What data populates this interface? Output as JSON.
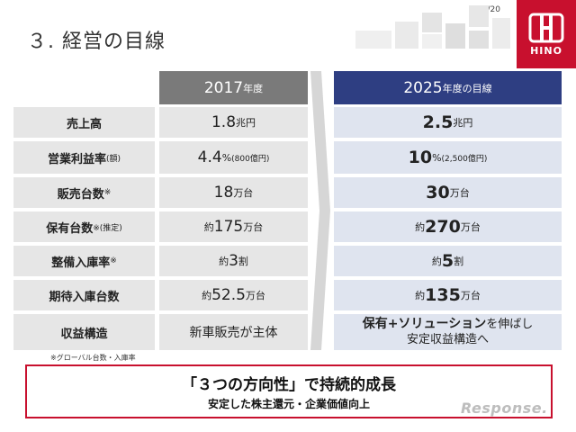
{
  "page_number": "18/20",
  "title": "３. 経営の目線",
  "logo": {
    "text": "HINO"
  },
  "header": {
    "col2017_main": "2017",
    "col2017_suffix": "年度",
    "col2025_main": "2025",
    "col2025_suffix": "年度の目線"
  },
  "rows": [
    {
      "label": "売上高",
      "label_note": "",
      "v2017_pre": "",
      "v2017_num": "1.8",
      "v2017_unit": "兆円",
      "v2017_note": "",
      "v2025_pre": "",
      "v2025_num": "2.5",
      "v2025_unit": "兆円",
      "v2025_note": ""
    },
    {
      "label": "営業利益率",
      "label_note": " (額)",
      "v2017_pre": "",
      "v2017_num": "4.4",
      "v2017_unit": "%",
      "v2017_note": " (800億円)",
      "v2025_pre": "",
      "v2025_num": "10",
      "v2025_unit": "%",
      "v2025_note": " (2,500億円)"
    },
    {
      "label": "販売台数",
      "label_note": "※",
      "v2017_pre": "",
      "v2017_num": "18",
      "v2017_unit": "万台",
      "v2017_note": "",
      "v2025_pre": "",
      "v2025_num": "30",
      "v2025_unit": "万台",
      "v2025_note": ""
    },
    {
      "label": "保有台数",
      "label_note": "※(推定)",
      "v2017_pre": "約",
      "v2017_num": "175",
      "v2017_unit": "万台",
      "v2017_note": "",
      "v2025_pre": "約",
      "v2025_num": "270",
      "v2025_unit": "万台",
      "v2025_note": ""
    },
    {
      "label": "整備入庫率",
      "label_note": "※",
      "v2017_pre": "約 ",
      "v2017_num": "3",
      "v2017_unit": " 割",
      "v2017_note": "",
      "v2025_pre": "約 ",
      "v2025_num": "5",
      "v2025_unit": " 割",
      "v2025_note": ""
    },
    {
      "label": "期待入庫台数",
      "label_note": "",
      "v2017_pre": "約",
      "v2017_num": "52.5",
      "v2017_unit": "万台",
      "v2017_note": "",
      "v2025_pre": "約",
      "v2025_num": "135",
      "v2025_unit": "万台",
      "v2025_note": ""
    }
  ],
  "last_row": {
    "label": "収益構造",
    "v2017": "新車販売が主体",
    "v2025_line1_bold": "保有+ソリューション",
    "v2025_line1_rest": "を伸ばし",
    "v2025_line2": "安定収益構造へ"
  },
  "footnote": "※グローバル台数・入庫率",
  "bottom": {
    "main": "「３つの方向性」で持続的成長",
    "sub": "安定した株主還元・企業価値向上"
  },
  "watermark": "Response."
}
